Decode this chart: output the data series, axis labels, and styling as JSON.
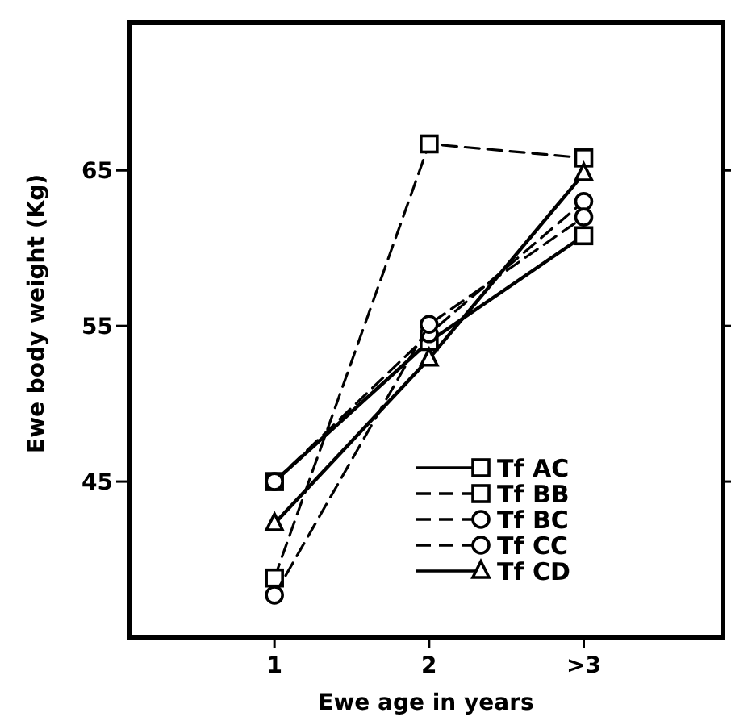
{
  "chart_data": {
    "type": "line",
    "xlabel": "Ewe  age in years",
    "ylabel": "Ewe  body  weight  (Kg)",
    "categories": [
      "1",
      "2",
      ">3"
    ],
    "ylim": [
      35,
      74.5
    ],
    "yticks": [
      45,
      55,
      65
    ],
    "legend": "bottom right",
    "series": [
      {
        "name": "Tf AC",
        "color": "#000000",
        "values": [
          45,
          54,
          60.8
        ],
        "marker": "square",
        "line_style": "solid"
      },
      {
        "name": "Tf BB",
        "color": "#000000",
        "values": [
          38.8,
          66.7,
          65.8
        ],
        "marker": "square",
        "line_style": "dashed"
      },
      {
        "name": "Tf BC",
        "color": "#000000",
        "values": [
          45,
          54.5,
          63
        ],
        "marker": "circle",
        "line_style": "dashed"
      },
      {
        "name": "Tf CC",
        "color": "#000000",
        "values": [
          37.7,
          55.1,
          62
        ],
        "marker": "circle",
        "line_style": "dashed"
      },
      {
        "name": "Tf CD",
        "color": "#000000",
        "values": [
          42.3,
          52.9,
          64.8
        ],
        "marker": "triangle",
        "line_style": "solid"
      }
    ]
  }
}
